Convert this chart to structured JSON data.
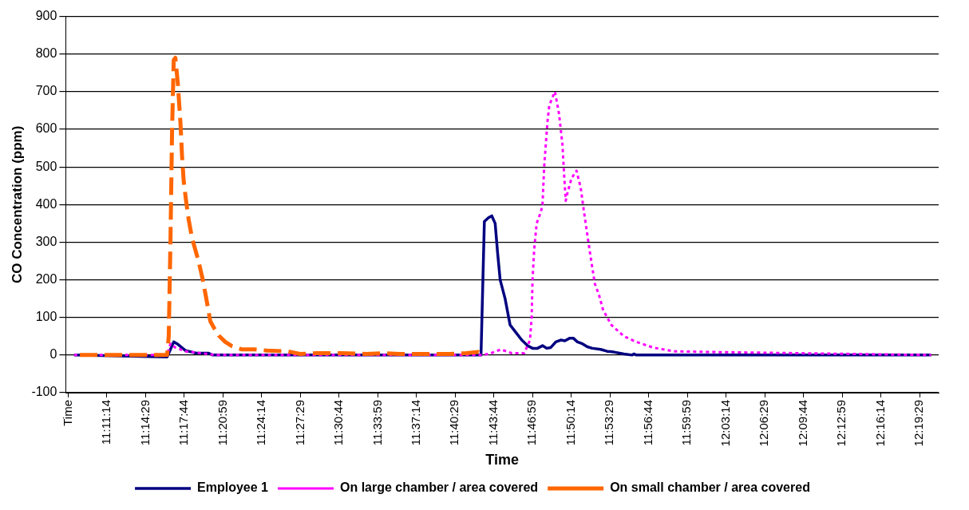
{
  "chart_data": {
    "type": "line",
    "xlabel": "Time",
    "ylabel": "CO Concentration (ppm)",
    "xlim": [
      11.1296,
      12.3514
    ],
    "xticks": [
      {
        "value": 11.13306,
        "label": "Time"
      },
      {
        "value": 11.18722,
        "label": "11:11:14"
      },
      {
        "value": 11.24139,
        "label": "11:14:29"
      },
      {
        "value": 11.29556,
        "label": "11:17:44"
      },
      {
        "value": 11.34972,
        "label": "11:20:59"
      },
      {
        "value": 11.40389,
        "label": "11:24:14"
      },
      {
        "value": 11.45806,
        "label": "11:27:29"
      },
      {
        "value": 11.51222,
        "label": "11:30:44"
      },
      {
        "value": 11.56639,
        "label": "11:33:59"
      },
      {
        "value": 11.62056,
        "label": "11:37:14"
      },
      {
        "value": 11.67472,
        "label": "11:40:29"
      },
      {
        "value": 11.72889,
        "label": "11:43:44"
      },
      {
        "value": 11.78306,
        "label": "11:46:59"
      },
      {
        "value": 11.83722,
        "label": "11:50:14"
      },
      {
        "value": 11.89139,
        "label": "11:53:29"
      },
      {
        "value": 11.94556,
        "label": "11:56:44"
      },
      {
        "value": 11.99972,
        "label": "11:59:59"
      },
      {
        "value": 12.05389,
        "label": "12:03:14"
      },
      {
        "value": 12.10806,
        "label": "12:06:29"
      },
      {
        "value": 12.16222,
        "label": "12:09:44"
      },
      {
        "value": 12.21639,
        "label": "12:12:59"
      },
      {
        "value": 12.27056,
        "label": "12:16:14"
      },
      {
        "value": 12.32472,
        "label": "12:19:29"
      }
    ],
    "ylim": [
      -100,
      900
    ],
    "yticks": [
      -100,
      0,
      100,
      200,
      300,
      400,
      500,
      600,
      700,
      800,
      900
    ],
    "grid": "y",
    "legend": "bottom",
    "marker": "none",
    "series": [
      {
        "name": "Employee 1",
        "color": "#000080",
        "line_style": "solid",
        "x": [
          11.1412,
          11.2714,
          11.2761,
          11.2807,
          11.2854,
          11.297,
          11.3063,
          11.3121,
          11.3295,
          11.3353,
          11.7108,
          11.7155,
          11.7213,
          11.7259,
          11.7306,
          11.7341,
          11.7376,
          11.7445,
          11.7515,
          11.7597,
          11.7678,
          11.7759,
          11.7829,
          11.7899,
          11.7969,
          11.8027,
          11.8085,
          11.8155,
          11.8224,
          11.8282,
          11.8352,
          11.8399,
          11.8457,
          11.8527,
          11.8596,
          11.8666,
          11.8782,
          11.8875,
          11.8968,
          11.9108,
          11.9224,
          11.9247,
          11.9282,
          12.3409
        ],
        "values": [
          0,
          -5,
          15,
          35,
          30,
          12,
          8,
          5,
          5,
          0,
          0,
          355,
          365,
          370,
          350,
          270,
          200,
          150,
          80,
          60,
          40,
          25,
          18,
          18,
          25,
          18,
          20,
          35,
          40,
          38,
          45,
          45,
          35,
          30,
          22,
          18,
          15,
          10,
          8,
          3,
          0,
          3,
          0,
          0
        ]
      },
      {
        "name": "On large chamber / area covered",
        "color": "#ff00ff",
        "line_style": "dotted",
        "x": [
          11.1412,
          11.2714,
          11.2761,
          11.283,
          11.297,
          11.3179,
          11.3412,
          11.7132,
          11.7248,
          11.7387,
          11.7538,
          11.7713,
          11.7794,
          11.7817,
          11.7829,
          11.7852,
          11.7887,
          11.7945,
          11.7969,
          11.7992,
          11.8015,
          11.8038,
          11.8062,
          11.8096,
          11.8143,
          11.8201,
          11.8248,
          11.8271,
          11.8294,
          11.8317,
          11.8375,
          11.8445,
          11.8503,
          11.855,
          11.8596,
          11.8643,
          11.8701,
          11.8759,
          11.8817,
          11.8933,
          11.9108,
          11.9282,
          11.9515,
          11.9805,
          12.0387,
          12.1549,
          12.3409
        ],
        "values": [
          0,
          0,
          30,
          20,
          10,
          5,
          0,
          0,
          5,
          15,
          5,
          5,
          40,
          100,
          200,
          280,
          350,
          380,
          400,
          500,
          560,
          620,
          660,
          680,
          700,
          640,
          560,
          480,
          410,
          430,
          470,
          490,
          445,
          380,
          320,
          260,
          190,
          160,
          120,
          80,
          50,
          35,
          20,
          10,
          8,
          5,
          0
        ]
      },
      {
        "name": "On small chamber / area covered",
        "color": "#ff6600",
        "line_style": "dashed",
        "x": [
          11.1493,
          11.2714,
          11.2737,
          11.2761,
          11.2784,
          11.2807,
          11.283,
          11.2865,
          11.29,
          11.2923,
          11.2947,
          11.2981,
          11.3016,
          11.3063,
          11.3109,
          11.3156,
          11.3214,
          11.326,
          11.3319,
          11.3377,
          11.3446,
          11.3528,
          11.3621,
          11.376,
          11.3935,
          11.4109,
          11.44,
          11.4574,
          11.4807,
          11.5155,
          11.5504,
          11.5737,
          11.5969,
          11.6202,
          11.6667,
          11.6899,
          11.7073,
          11.7132
        ],
        "values": [
          0,
          0,
          50,
          300,
          600,
          784,
          790,
          720,
          620,
          530,
          461,
          408,
          360,
          311,
          280,
          248,
          200,
          153,
          90,
          70,
          50,
          35,
          24,
          15,
          15,
          12,
          10,
          3,
          5,
          5,
          3,
          5,
          3,
          3,
          3,
          5,
          8,
          3
        ]
      }
    ]
  }
}
